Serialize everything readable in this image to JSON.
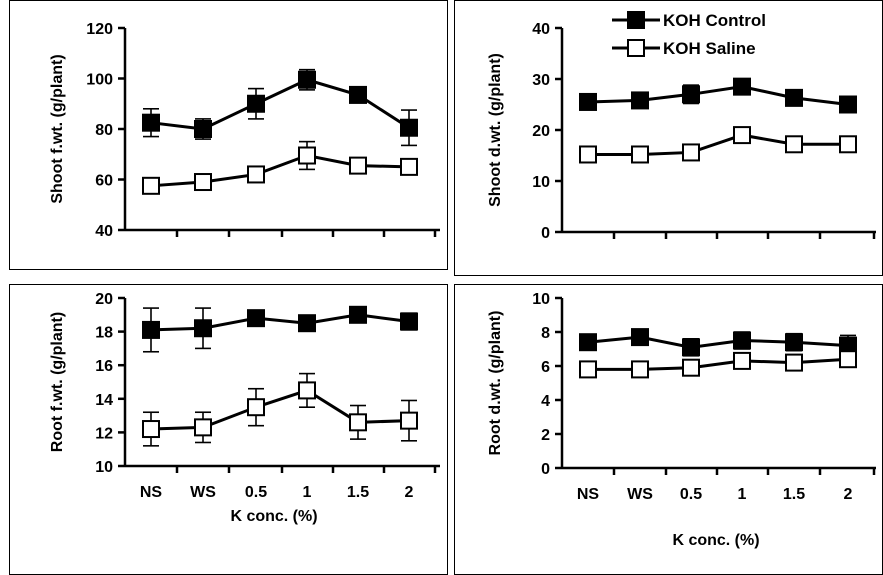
{
  "chart_data": [
    {
      "id": "shoot-fwt",
      "type": "line",
      "categories": [
        "NS",
        "WS",
        "0.5",
        "1",
        "1.5",
        "2"
      ],
      "ylabel": "Shoot f.wt. (g/plant)",
      "xlabel": "",
      "ylim": [
        40,
        120
      ],
      "yticks": [
        40,
        60,
        80,
        100,
        120
      ],
      "show_category_labels": false,
      "legend": "",
      "series": [
        {
          "name": "KOH Control",
          "marker": "filled-square",
          "values": [
            82.5,
            80,
            90,
            99.5,
            93.5,
            80.5
          ],
          "errors": [
            5.5,
            4,
            6,
            4,
            2.5,
            7
          ]
        },
        {
          "name": "KOH Saline",
          "marker": "open-square",
          "values": [
            57.5,
            59,
            62,
            69.5,
            65.5,
            65
          ],
          "errors": [
            2,
            2,
            3,
            5.5,
            2.5,
            2
          ]
        }
      ]
    },
    {
      "id": "shoot-dwt",
      "type": "line",
      "categories": [
        "NS",
        "WS",
        "0.5",
        "1",
        "1.5",
        "2"
      ],
      "ylabel": "Shoot d.wt. (g/plant)",
      "xlabel": "",
      "ylim": [
        0,
        40
      ],
      "yticks": [
        0,
        10,
        20,
        30,
        40
      ],
      "show_category_labels": false,
      "legend": "top-right",
      "series": [
        {
          "name": "KOH Control",
          "marker": "filled-square",
          "values": [
            25.5,
            25.8,
            27,
            28.5,
            26.3,
            25
          ],
          "errors": [
            1.5,
            1.3,
            1.8,
            1.2,
            1.4,
            1.2
          ]
        },
        {
          "name": "KOH Saline",
          "marker": "open-square",
          "values": [
            15.2,
            15.2,
            15.6,
            19,
            17.2,
            17.2
          ],
          "errors": [
            0.8,
            0.8,
            0.8,
            1.1,
            1,
            0.9
          ]
        }
      ]
    },
    {
      "id": "root-fwt",
      "type": "line",
      "categories": [
        "NS",
        "WS",
        "0.5",
        "1",
        "1.5",
        "2"
      ],
      "ylabel": "Root f.wt. (g/plant)",
      "xlabel": "K conc. (%)",
      "ylim": [
        10,
        20
      ],
      "yticks": [
        10,
        12,
        14,
        16,
        18,
        20
      ],
      "show_category_labels": true,
      "legend": "",
      "series": [
        {
          "name": "KOH Control",
          "marker": "filled-square",
          "values": [
            18.1,
            18.2,
            18.8,
            18.5,
            19,
            18.6
          ],
          "errors": [
            1.3,
            1.2,
            0.3,
            0.3,
            0.3,
            0.5
          ]
        },
        {
          "name": "KOH Saline",
          "marker": "open-square",
          "values": [
            12.2,
            12.3,
            13.5,
            14.5,
            12.6,
            12.7
          ],
          "errors": [
            1,
            0.9,
            1.1,
            1,
            1,
            1.2
          ]
        }
      ]
    },
    {
      "id": "root-dwt",
      "type": "line",
      "categories": [
        "NS",
        "WS",
        "0.5",
        "1",
        "1.5",
        "2"
      ],
      "ylabel": "Root d.wt. (g/plant)",
      "xlabel": "K conc. (%)",
      "ylim": [
        0,
        10
      ],
      "yticks": [
        0,
        2,
        4,
        6,
        8,
        10
      ],
      "show_category_labels": true,
      "legend": "",
      "series": [
        {
          "name": "KOH Control",
          "marker": "filled-square",
          "values": [
            7.4,
            7.7,
            7.1,
            7.5,
            7.4,
            7.2
          ],
          "errors": [
            0.4,
            0.4,
            0.5,
            0.5,
            0.5,
            0.6
          ]
        },
        {
          "name": "KOH Saline",
          "marker": "open-square",
          "values": [
            5.8,
            5.8,
            5.9,
            6.3,
            6.2,
            6.4
          ],
          "errors": [
            0.3,
            0.3,
            0.4,
            0.3,
            0.3,
            0.4
          ]
        }
      ]
    }
  ]
}
